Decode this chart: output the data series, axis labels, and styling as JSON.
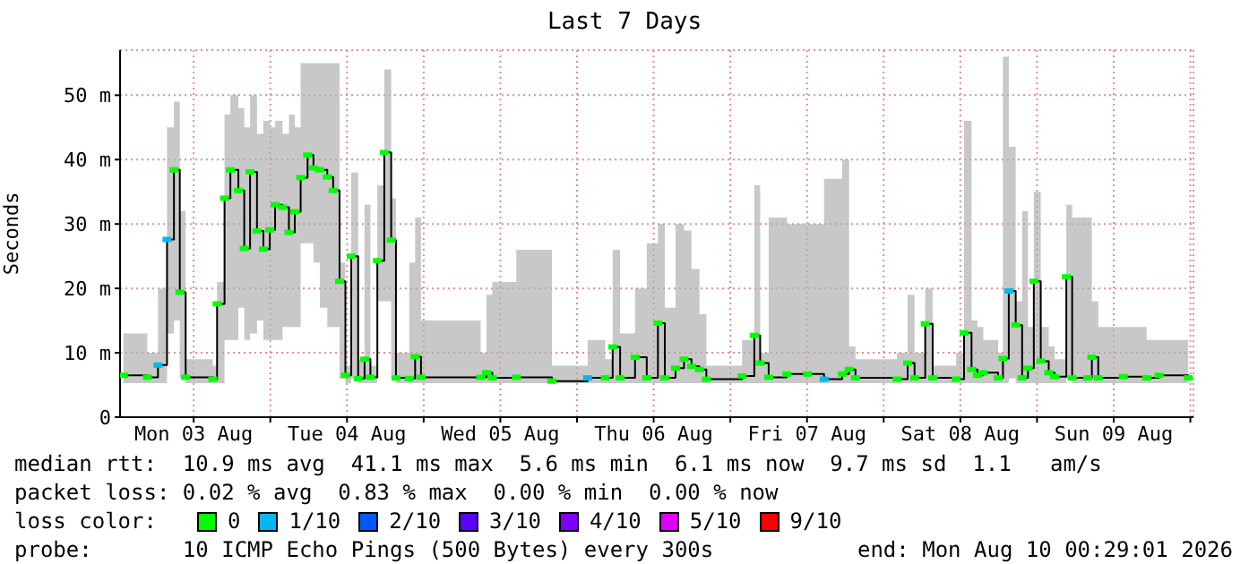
{
  "chart_data": {
    "type": "step",
    "title": "Last 7 Days",
    "ylabel": "Seconds",
    "legend_title": "loss color:",
    "legend": "bottom",
    "grid": true,
    "xlim": [
      "2026-08-03T00:29",
      "2026-08-10T00:29"
    ],
    "xticks": [
      {
        "value": "2026-08-03T12:00",
        "label": "Mon 03 Aug"
      },
      {
        "value": "2026-08-04T00:00",
        "label": null
      },
      {
        "value": "2026-08-04T12:00",
        "label": "Tue 04 Aug"
      },
      {
        "value": "2026-08-05T00:00",
        "label": null
      },
      {
        "value": "2026-08-05T12:00",
        "label": "Wed 05 Aug"
      },
      {
        "value": "2026-08-06T00:00",
        "label": null
      },
      {
        "value": "2026-08-06T12:00",
        "label": "Thu 06 Aug"
      },
      {
        "value": "2026-08-07T00:00",
        "label": null
      },
      {
        "value": "2026-08-07T12:00",
        "label": "Fri 07 Aug"
      },
      {
        "value": "2026-08-08T00:00",
        "label": null
      },
      {
        "value": "2026-08-08T12:00",
        "label": "Sat 08 Aug"
      },
      {
        "value": "2026-08-09T00:00",
        "label": null
      },
      {
        "value": "2026-08-09T12:00",
        "label": "Sun 09 Aug"
      },
      {
        "value": "2026-08-10T00:00",
        "label": null
      }
    ],
    "ylim": [
      0,
      57
    ],
    "yticks": [
      0,
      {
        "value": 10,
        "label": "10 m"
      },
      {
        "value": 20,
        "label": "20 m"
      },
      {
        "value": 30,
        "label": "30 m"
      },
      {
        "value": 40,
        "label": "40 m"
      },
      {
        "value": 50,
        "label": "50 m"
      }
    ],
    "x": [
      "2026-08-03T01:00",
      "2026-08-03T04:45",
      "2026-08-03T06:25",
      "2026-08-03T07:50",
      "2026-08-03T08:55",
      "2026-08-03T09:50",
      "2026-08-03T10:45",
      "2026-08-03T15:00",
      "2026-08-03T15:40",
      "2026-08-03T16:50",
      "2026-08-03T17:45",
      "2026-08-03T19:00",
      "2026-08-03T19:55",
      "2026-08-03T20:50",
      "2026-08-03T21:55",
      "2026-08-03T22:55",
      "2026-08-03T23:55",
      "2026-08-04T00:45",
      "2026-08-04T01:55",
      "2026-08-04T02:55",
      "2026-08-04T03:50",
      "2026-08-04T04:45",
      "2026-08-04T05:50",
      "2026-08-04T06:45",
      "2026-08-04T07:45",
      "2026-08-04T08:55",
      "2026-08-04T09:50",
      "2026-08-04T10:50",
      "2026-08-04T11:45",
      "2026-08-04T12:40",
      "2026-08-04T13:45",
      "2026-08-04T14:45",
      "2026-08-04T15:40",
      "2026-08-04T16:45",
      "2026-08-04T17:50",
      "2026-08-04T18:55",
      "2026-08-04T19:40",
      "2026-08-04T21:45",
      "2026-08-04T22:40",
      "2026-08-04T23:35",
      "2026-08-05T08:55",
      "2026-08-05T09:50",
      "2026-08-05T10:45",
      "2026-08-05T14:30",
      "2026-08-05T20:05",
      "2026-08-06T01:40",
      "2026-08-06T04:25",
      "2026-08-06T05:35",
      "2026-08-06T06:45",
      "2026-08-06T09:05",
      "2026-08-06T10:55",
      "2026-08-06T12:40",
      "2026-08-06T13:45",
      "2026-08-06T15:25",
      "2026-08-06T16:45",
      "2026-08-06T17:55",
      "2026-08-06T19:10",
      "2026-08-06T20:15",
      "2026-08-07T01:50",
      "2026-08-07T03:45",
      "2026-08-07T04:40",
      "2026-08-07T06:00",
      "2026-08-07T08:50",
      "2026-08-07T12:05",
      "2026-08-07T14:40",
      "2026-08-07T17:30",
      "2026-08-07T18:35",
      "2026-08-07T19:35",
      "2026-08-08T02:05",
      "2026-08-08T03:45",
      "2026-08-08T04:50",
      "2026-08-08T06:30",
      "2026-08-08T07:40",
      "2026-08-08T11:20",
      "2026-08-08T12:35",
      "2026-08-08T13:45",
      "2026-08-08T14:40",
      "2026-08-08T15:35",
      "2026-08-08T17:55",
      "2026-08-08T18:40",
      "2026-08-08T19:35",
      "2026-08-08T20:40",
      "2026-08-08T21:40",
      "2026-08-08T22:35",
      "2026-08-08T23:30",
      "2026-08-09T00:35",
      "2026-08-09T01:50",
      "2026-08-09T02:45",
      "2026-08-09T04:35",
      "2026-08-09T05:30",
      "2026-08-09T07:55",
      "2026-08-09T08:35",
      "2026-08-09T09:35",
      "2026-08-09T13:30",
      "2026-08-09T17:10",
      "2026-08-09T19:05",
      "2026-08-09T23:40"
    ],
    "series": [
      {
        "color": "#000000",
        "values": [
          6.5,
          6.2,
          8.1,
          27.6,
          38.4,
          19.4,
          6.2,
          5.9,
          17.6,
          34,
          38.4,
          35.2,
          26.2,
          38.1,
          28.9,
          26.1,
          29.1,
          33,
          32.6,
          28.7,
          31.9,
          37.2,
          40.7,
          38.7,
          38.4,
          37.3,
          35.2,
          21.1,
          6.5,
          25,
          6,
          9,
          6.2,
          24.3,
          41.1,
          27.5,
          6.1,
          6,
          9.4,
          6.2,
          6.2,
          6.9,
          6.1,
          6.2,
          5.6,
          6.1,
          6.1,
          10.9,
          6.1,
          9.3,
          6.1,
          14.6,
          6.1,
          7.6,
          9,
          7.9,
          7.4,
          5.9,
          6.4,
          12.7,
          8.4,
          6.2,
          6.7,
          6.7,
          5.9,
          6.7,
          7.4,
          6.1,
          5.9,
          8.4,
          6.1,
          14.5,
          6.1,
          5.9,
          13.1,
          7.4,
          6.5,
          6.9,
          6.1,
          9.1,
          19.6,
          14.3,
          6.1,
          7.6,
          21.1,
          8.7,
          6.9,
          6.3,
          21.8,
          6.1,
          6.1,
          9.3,
          6.1,
          6.3,
          6.1,
          6.5,
          6.1
        ],
        "upper": [
          13,
          10,
          20,
          45,
          49,
          32,
          9,
          8,
          21,
          47,
          50,
          48,
          45,
          50,
          44,
          46,
          45,
          46,
          44,
          47,
          45,
          55,
          55,
          55,
          55,
          55,
          55,
          24,
          8,
          38,
          9,
          33,
          8,
          36,
          54,
          34,
          10,
          24,
          31,
          15,
          10,
          19,
          21,
          26,
          8,
          12,
          9,
          26,
          13,
          20,
          27,
          30,
          17,
          30,
          29,
          23,
          16,
          8,
          12,
          36,
          10,
          31,
          30,
          30,
          37,
          40,
          11,
          9,
          10,
          19,
          10,
          20,
          8,
          10,
          46,
          15,
          14,
          12,
          10,
          56,
          42,
          18,
          32,
          14,
          35,
          14,
          11,
          9,
          33,
          31,
          31,
          18,
          14,
          14,
          12,
          12,
          9
        ],
        "lower": [
          5.3,
          5.3,
          5.3,
          13,
          15,
          6,
          5.3,
          5.3,
          5.3,
          12,
          12,
          17,
          12,
          13,
          15,
          12,
          12,
          12,
          14,
          14,
          14,
          27,
          27,
          24,
          17,
          14,
          14,
          6,
          5.3,
          6,
          5.3,
          5.3,
          5.3,
          18,
          18,
          6,
          5.3,
          5.3,
          5.3,
          5.3,
          5.3,
          5.3,
          5.3,
          5.3,
          5.3,
          5.3,
          5.3,
          5.3,
          5.3,
          5.3,
          5.3,
          5.3,
          5.3,
          5.3,
          5.3,
          5.3,
          5.3,
          5.3,
          5.3,
          5.3,
          5.3,
          5.3,
          5.3,
          5.3,
          5.3,
          5.3,
          5.3,
          5.3,
          5.3,
          5.3,
          5.3,
          5.3,
          5.3,
          5.3,
          5.3,
          5.3,
          5.3,
          5.3,
          5.3,
          5.3,
          6,
          5.3,
          5.3,
          5.3,
          5.3,
          5.3,
          5.3,
          5.3,
          6,
          5.3,
          5.3,
          5.3,
          5.3,
          5.3,
          5.3,
          5.3,
          5.3
        ]
      },
      {
        "type": "scatter",
        "name": "0",
        "color": "#00ff00",
        "marker": "square",
        "values": [
          6.5,
          6.2,
          null,
          null,
          38.4,
          19.4,
          6.2,
          5.9,
          17.6,
          34,
          38.4,
          35.2,
          26.2,
          38.1,
          28.9,
          26.1,
          29.1,
          33,
          32.6,
          28.7,
          31.9,
          37.2,
          40.7,
          38.7,
          38.4,
          37.3,
          35.2,
          21.1,
          6.5,
          25,
          6,
          9,
          6.2,
          24.3,
          41.1,
          27.5,
          6.1,
          6,
          9.4,
          6.2,
          6.2,
          6.9,
          6.1,
          6.2,
          5.6,
          null,
          6.1,
          10.9,
          6.1,
          9.3,
          6.1,
          14.6,
          6.1,
          7.6,
          9,
          7.9,
          7.4,
          5.9,
          6.4,
          12.7,
          8.4,
          6.2,
          6.7,
          6.7,
          null,
          6.7,
          7.4,
          6.1,
          5.9,
          8.4,
          6.1,
          14.5,
          6.1,
          5.9,
          13.1,
          7.4,
          6.5,
          6.9,
          6.1,
          9.1,
          null,
          14.3,
          6.1,
          7.6,
          21.1,
          8.7,
          6.9,
          6.3,
          21.8,
          6.1,
          6.1,
          9.3,
          6.1,
          6.3,
          6.1,
          6.5,
          6.1
        ]
      },
      {
        "type": "scatter",
        "name": "1/10",
        "color": "#00b8f0",
        "marker": "square",
        "x": [
          "2026-08-03T06:25",
          "2026-08-03T07:50",
          "2026-08-06T01:40",
          "2026-08-07T14:40",
          "2026-08-08T19:35"
        ],
        "values": [
          8.1,
          27.6,
          6.1,
          5.9,
          19.6
        ]
      },
      {
        "type": "scatter",
        "name": "2/10",
        "color": "#0059ff",
        "values": [
          null,
          null,
          null,
          null,
          null,
          null,
          null,
          null,
          null,
          null,
          null,
          null,
          null,
          null,
          null,
          null,
          null,
          null,
          null,
          null,
          null,
          null,
          null,
          null,
          null,
          null,
          null,
          null,
          null,
          null,
          null,
          null,
          null,
          null,
          null,
          null,
          null,
          null,
          null,
          null,
          null,
          null,
          null,
          null,
          null,
          null,
          null,
          null,
          null,
          null,
          null,
          null,
          null,
          null,
          null,
          null,
          null,
          null,
          null,
          null,
          null,
          null,
          null,
          null,
          null,
          null,
          null,
          null,
          null,
          null,
          null,
          null,
          null,
          null,
          null,
          null,
          null,
          null,
          null,
          null,
          null,
          null,
          null,
          null,
          null,
          null,
          null,
          null,
          null,
          null,
          null,
          null,
          null,
          null,
          null,
          null,
          null
        ]
      },
      {
        "type": "scatter",
        "name": "3/10",
        "color": "#5e00ff",
        "values": [
          null,
          null,
          null,
          null,
          null,
          null,
          null,
          null,
          null,
          null,
          null,
          null,
          null,
          null,
          null,
          null,
          null,
          null,
          null,
          null,
          null,
          null,
          null,
          null,
          null,
          null,
          null,
          null,
          null,
          null,
          null,
          null,
          null,
          null,
          null,
          null,
          null,
          null,
          null,
          null,
          null,
          null,
          null,
          null,
          null,
          null,
          null,
          null,
          null,
          null,
          null,
          null,
          null,
          null,
          null,
          null,
          null,
          null,
          null,
          null,
          null,
          null,
          null,
          null,
          null,
          null,
          null,
          null,
          null,
          null,
          null,
          null,
          null,
          null,
          null,
          null,
          null,
          null,
          null,
          null,
          null,
          null,
          null,
          null,
          null,
          null,
          null,
          null,
          null,
          null,
          null,
          null,
          null,
          null,
          null,
          null,
          null
        ]
      },
      {
        "type": "scatter",
        "name": "4/10",
        "color": "#7e00ff",
        "values": [
          null,
          null,
          null,
          null,
          null,
          null,
          null,
          null,
          null,
          null,
          null,
          null,
          null,
          null,
          null,
          null,
          null,
          null,
          null,
          null,
          null,
          null,
          null,
          null,
          null,
          null,
          null,
          null,
          null,
          null,
          null,
          null,
          null,
          null,
          null,
          null,
          null,
          null,
          null,
          null,
          null,
          null,
          null,
          null,
          null,
          null,
          null,
          null,
          null,
          null,
          null,
          null,
          null,
          null,
          null,
          null,
          null,
          null,
          null,
          null,
          null,
          null,
          null,
          null,
          null,
          null,
          null,
          null,
          null,
          null,
          null,
          null,
          null,
          null,
          null,
          null,
          null,
          null,
          null,
          null,
          null,
          null,
          null,
          null,
          null,
          null,
          null,
          null,
          null,
          null,
          null,
          null,
          null,
          null,
          null,
          null,
          null
        ]
      },
      {
        "type": "scatter",
        "name": "5/10",
        "color": "#dd00ff",
        "values": [
          null,
          null,
          null,
          null,
          null,
          null,
          null,
          null,
          null,
          null,
          null,
          null,
          null,
          null,
          null,
          null,
          null,
          null,
          null,
          null,
          null,
          null,
          null,
          null,
          null,
          null,
          null,
          null,
          null,
          null,
          null,
          null,
          null,
          null,
          null,
          null,
          null,
          null,
          null,
          null,
          null,
          null,
          null,
          null,
          null,
          null,
          null,
          null,
          null,
          null,
          null,
          null,
          null,
          null,
          null,
          null,
          null,
          null,
          null,
          null,
          null,
          null,
          null,
          null,
          null,
          null,
          null,
          null,
          null,
          null,
          null,
          null,
          null,
          null,
          null,
          null,
          null,
          null,
          null,
          null,
          null,
          null,
          null,
          null,
          null,
          null,
          null,
          null,
          null,
          null,
          null,
          null,
          null,
          null,
          null,
          null,
          null
        ]
      },
      {
        "type": "scatter",
        "name": "9/10",
        "color": "#ff0000",
        "values": [
          null,
          null,
          null,
          null,
          null,
          null,
          null,
          null,
          null,
          null,
          null,
          null,
          null,
          null,
          null,
          null,
          null,
          null,
          null,
          null,
          null,
          null,
          null,
          null,
          null,
          null,
          null,
          null,
          null,
          null,
          null,
          null,
          null,
          null,
          null,
          null,
          null,
          null,
          null,
          null,
          null,
          null,
          null,
          null,
          null,
          null,
          null,
          null,
          null,
          null,
          null,
          null,
          null,
          null,
          null,
          null,
          null,
          null,
          null,
          null,
          null,
          null,
          null,
          null,
          null,
          null,
          null,
          null,
          null,
          null,
          null,
          null,
          null,
          null,
          null,
          null,
          null,
          null,
          null,
          null,
          null,
          null,
          null,
          null,
          null,
          null,
          null,
          null,
          null,
          null,
          null,
          null,
          null,
          null,
          null,
          null,
          null
        ]
      }
    ],
    "annotations": [
      "median rtt:  10.9 ms avg  41.1 ms max  5.6 ms min  6.1 ms now  9.7 ms sd  1.1   am/s",
      "packet loss: 0.02 % avg  0.83 % max  0.00 % min  0.00 % now",
      "probe:       10 ICMP Echo Pings (500 Bytes) every 300s",
      "end: Mon Aug 10 00:29:01 2026"
    ]
  }
}
